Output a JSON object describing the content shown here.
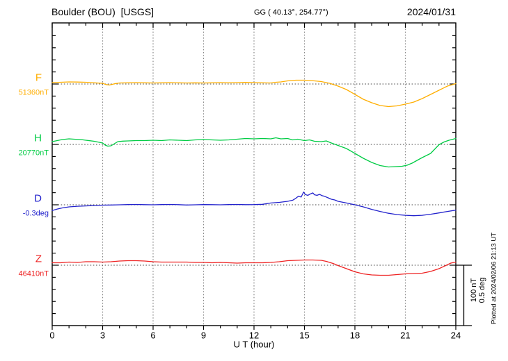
{
  "header": {
    "station": "Boulder (BOU)  [USGS]",
    "coords": "GG ( 40.13°, 254.77°)",
    "date": "2024/01/31"
  },
  "axis": {
    "xlabel": "U T (hour)",
    "xticks": [
      0,
      3,
      6,
      9,
      12,
      15,
      18,
      21,
      24
    ],
    "x_minor_step_hours": 1,
    "y_tick_value_nT": 20,
    "y_tick_value_deg": 0.1
  },
  "scale_bar": {
    "line1": "100 nT",
    "line2": "0.5 deg"
  },
  "footer_note": "Plotted at 2024/02/06 21:13 UT",
  "chart_data": {
    "type": "line",
    "title": "Boulder (BOU) [USGS] magnetogram 2024/01/31",
    "xlabel": "U T (hour)",
    "x_range": [
      0,
      24
    ],
    "grid": {
      "vertical_every_hours": 3,
      "horizontal_at_baselines": true,
      "style": "dotted"
    },
    "series": [
      {
        "name": "F",
        "label": "F",
        "baseline_label": "51360nT",
        "baseline_value": 51360,
        "unit": "nT",
        "color": "#FFAE00",
        "points": [
          [
            0,
            2.3
          ],
          [
            0.5,
            2.9
          ],
          [
            1,
            3.4
          ],
          [
            1.5,
            3.2
          ],
          [
            2,
            2.9
          ],
          [
            2.5,
            2
          ],
          [
            3,
            1.1
          ],
          [
            3.2,
            -0.9
          ],
          [
            3.4,
            -1.7
          ],
          [
            3.7,
            0.3
          ],
          [
            4,
            1.7
          ],
          [
            4.5,
            2
          ],
          [
            5,
            2.3
          ],
          [
            5.5,
            2
          ],
          [
            6,
            1.7
          ],
          [
            6.5,
            2
          ],
          [
            7,
            2.3
          ],
          [
            7.5,
            2
          ],
          [
            8,
            1.7
          ],
          [
            8.5,
            2
          ],
          [
            9,
            1.7
          ],
          [
            9.5,
            2
          ],
          [
            10,
            2.3
          ],
          [
            10.5,
            2
          ],
          [
            11,
            2.3
          ],
          [
            11.5,
            2.6
          ],
          [
            12,
            2.3
          ],
          [
            12.5,
            2
          ],
          [
            13,
            1.7
          ],
          [
            13.3,
            2.9
          ],
          [
            13.6,
            3.4
          ],
          [
            14,
            5.2
          ],
          [
            14.5,
            6.3
          ],
          [
            15,
            6.3
          ],
          [
            15.3,
            5.7
          ],
          [
            15.6,
            5.2
          ],
          [
            16,
            4
          ],
          [
            16.5,
            1.1
          ],
          [
            17,
            -3.4
          ],
          [
            17.5,
            -9.2
          ],
          [
            18,
            -17.2
          ],
          [
            18.5,
            -25.3
          ],
          [
            19,
            -31
          ],
          [
            19.5,
            -35.6
          ],
          [
            20,
            -37.4
          ],
          [
            20.5,
            -36.2
          ],
          [
            21,
            -33.3
          ],
          [
            21.5,
            -29.9
          ],
          [
            22,
            -24.1
          ],
          [
            22.5,
            -17.2
          ],
          [
            23,
            -10.3
          ],
          [
            23.5,
            -3.4
          ],
          [
            24,
            0.6
          ]
        ]
      },
      {
        "name": "H",
        "label": "H",
        "baseline_label": "20770nT",
        "baseline_value": 20770,
        "unit": "nT",
        "color": "#00CC44",
        "points": [
          [
            0,
            4.6
          ],
          [
            0.3,
            6.3
          ],
          [
            0.6,
            8
          ],
          [
            1,
            9.2
          ],
          [
            1.3,
            8.6
          ],
          [
            1.7,
            8
          ],
          [
            2,
            6.9
          ],
          [
            2.5,
            5.2
          ],
          [
            2.8,
            3.4
          ],
          [
            3,
            2.3
          ],
          [
            3.15,
            -1.1
          ],
          [
            3.3,
            -2.9
          ],
          [
            3.5,
            -2.3
          ],
          [
            3.7,
            1.1
          ],
          [
            3.9,
            4.6
          ],
          [
            4.2,
            5.4
          ],
          [
            4.5,
            5.7
          ],
          [
            5,
            6.3
          ],
          [
            5.5,
            6.3
          ],
          [
            6,
            6.9
          ],
          [
            6.5,
            6.3
          ],
          [
            7,
            7.5
          ],
          [
            7.5,
            6.9
          ],
          [
            8,
            6.3
          ],
          [
            8.5,
            7.5
          ],
          [
            9,
            8
          ],
          [
            9.5,
            7.5
          ],
          [
            10,
            6.9
          ],
          [
            10.5,
            7.5
          ],
          [
            11,
            8.6
          ],
          [
            11.5,
            9.8
          ],
          [
            12,
            9.2
          ],
          [
            12.5,
            9.8
          ],
          [
            13,
            9.2
          ],
          [
            13.3,
            10.9
          ],
          [
            13.6,
            9.2
          ],
          [
            14,
            9.8
          ],
          [
            14.3,
            7.5
          ],
          [
            14.6,
            8.6
          ],
          [
            15,
            6.3
          ],
          [
            15.3,
            7.5
          ],
          [
            15.6,
            5.2
          ],
          [
            16,
            4.6
          ],
          [
            16.3,
            5.7
          ],
          [
            16.6,
            2.3
          ],
          [
            17,
            -1.7
          ],
          [
            17.5,
            -6.9
          ],
          [
            18,
            -14.9
          ],
          [
            18.5,
            -23
          ],
          [
            19,
            -29.9
          ],
          [
            19.5,
            -35.1
          ],
          [
            20,
            -37.4
          ],
          [
            20.4,
            -36.8
          ],
          [
            20.8,
            -36.2
          ],
          [
            21.1,
            -34.5
          ],
          [
            21.4,
            -31
          ],
          [
            21.7,
            -26.4
          ],
          [
            22,
            -21.8
          ],
          [
            22.5,
            -14.9
          ],
          [
            22.7,
            -9.2
          ],
          [
            23,
            -0.6
          ],
          [
            23.3,
            4
          ],
          [
            23.6,
            6.9
          ],
          [
            24,
            9.8
          ]
        ]
      },
      {
        "name": "D",
        "label": "D",
        "baseline_label": "-0.3deg",
        "baseline_value": -0.3,
        "unit": "deg",
        "color": "#2222CC",
        "points": [
          [
            0,
            -0.047
          ],
          [
            0.3,
            -0.035
          ],
          [
            0.6,
            -0.026
          ],
          [
            1,
            -0.017
          ],
          [
            1.5,
            -0.012
          ],
          [
            2,
            -0.009
          ],
          [
            2.5,
            -0.006
          ],
          [
            3,
            -0.003
          ],
          [
            3.5,
            -0.002
          ],
          [
            4,
            0
          ],
          [
            4.5,
            0.002
          ],
          [
            5,
            0.003
          ],
          [
            5.5,
            0.001
          ],
          [
            6,
            0
          ],
          [
            6.5,
            0.002
          ],
          [
            7,
            0.003
          ],
          [
            7.5,
            0.001
          ],
          [
            8,
            -0.002
          ],
          [
            8.5,
            0
          ],
          [
            9,
            0.002
          ],
          [
            9.5,
            0.001
          ],
          [
            10,
            0
          ],
          [
            10.5,
            0.002
          ],
          [
            11,
            0.003
          ],
          [
            11.5,
            0.001
          ],
          [
            12,
            0.002
          ],
          [
            12.5,
            0.004
          ],
          [
            13,
            0.015
          ],
          [
            13.5,
            0.02
          ],
          [
            14,
            0.029
          ],
          [
            14.3,
            0.038
          ],
          [
            14.5,
            0.055
          ],
          [
            14.65,
            0.072
          ],
          [
            14.8,
            0.064
          ],
          [
            14.95,
            0.106
          ],
          [
            15.05,
            0.085
          ],
          [
            15.2,
            0.078
          ],
          [
            15.35,
            0.09
          ],
          [
            15.5,
            0.098
          ],
          [
            15.6,
            0.083
          ],
          [
            15.75,
            0.078
          ],
          [
            15.9,
            0.087
          ],
          [
            16.05,
            0.075
          ],
          [
            16.2,
            0.07
          ],
          [
            16.4,
            0.058
          ],
          [
            16.6,
            0.046
          ],
          [
            16.8,
            0.04
          ],
          [
            17,
            0.029
          ],
          [
            17.5,
            0.015
          ],
          [
            18,
            0
          ],
          [
            18.5,
            -0.017
          ],
          [
            19,
            -0.038
          ],
          [
            19.5,
            -0.055
          ],
          [
            20,
            -0.07
          ],
          [
            20.5,
            -0.081
          ],
          [
            21,
            -0.087
          ],
          [
            21.5,
            -0.09
          ],
          [
            22,
            -0.087
          ],
          [
            22.5,
            -0.078
          ],
          [
            23,
            -0.067
          ],
          [
            23.5,
            -0.055
          ],
          [
            24,
            -0.044
          ]
        ]
      },
      {
        "name": "Z",
        "label": "Z",
        "baseline_label": "46410nT",
        "baseline_value": 46410,
        "unit": "nT",
        "color": "#EE2222",
        "points": [
          [
            0,
            4
          ],
          [
            0.5,
            4
          ],
          [
            1,
            5.2
          ],
          [
            1.5,
            4.6
          ],
          [
            2,
            5.7
          ],
          [
            2.5,
            5.7
          ],
          [
            3,
            5.2
          ],
          [
            3.5,
            5.7
          ],
          [
            4,
            6.9
          ],
          [
            4.5,
            7.5
          ],
          [
            5,
            7.5
          ],
          [
            5.5,
            6.9
          ],
          [
            6,
            5.7
          ],
          [
            6.5,
            5.2
          ],
          [
            7,
            5.2
          ],
          [
            7.5,
            5.2
          ],
          [
            8,
            5.2
          ],
          [
            8.5,
            4.6
          ],
          [
            9,
            4.6
          ],
          [
            9.5,
            4
          ],
          [
            10,
            4.6
          ],
          [
            10.5,
            4
          ],
          [
            11,
            3.4
          ],
          [
            11.5,
            4
          ],
          [
            12,
            4
          ],
          [
            12.5,
            4
          ],
          [
            13,
            4.6
          ],
          [
            13.5,
            5.7
          ],
          [
            14,
            7.5
          ],
          [
            14.5,
            8
          ],
          [
            15,
            8.6
          ],
          [
            15.5,
            8.6
          ],
          [
            16,
            8
          ],
          [
            16.3,
            6.3
          ],
          [
            16.7,
            2.9
          ],
          [
            17,
            -0.6
          ],
          [
            17.5,
            -5.7
          ],
          [
            18,
            -10.9
          ],
          [
            18.5,
            -14.4
          ],
          [
            19,
            -16.1
          ],
          [
            19.5,
            -16.7
          ],
          [
            20,
            -16.7
          ],
          [
            20.5,
            -15.5
          ],
          [
            21,
            -14.4
          ],
          [
            21.5,
            -13.8
          ],
          [
            22,
            -13.2
          ],
          [
            22.5,
            -10.3
          ],
          [
            23,
            -5.7
          ],
          [
            23.4,
            -0.6
          ],
          [
            23.7,
            3.4
          ],
          [
            24,
            5.2
          ]
        ]
      }
    ]
  }
}
